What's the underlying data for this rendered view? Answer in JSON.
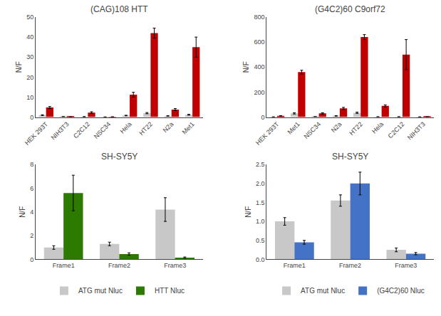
{
  "chart_data": [
    {
      "type": "bar",
      "title": "(CAG)108 HTT",
      "categories": [
        "HEK 293T",
        "NIH3T3",
        "C2C12",
        "NSC34",
        "Hela",
        "HT22",
        "N2a",
        "Met1"
      ],
      "series": [
        {
          "color": "#c8c8c8",
          "values": [
            1.0,
            0.3,
            0.2,
            0.1,
            0.8,
            2.0,
            0.6,
            1.2
          ],
          "errors": [
            0.2,
            0.05,
            0.1,
            0.05,
            0.15,
            0.3,
            0.1,
            0.2
          ]
        },
        {
          "color": "#c00000",
          "values": [
            4.8,
            0.3,
            2.3,
            0.15,
            11.2,
            42.0,
            3.8,
            35.0
          ],
          "errors": [
            0.5,
            0.1,
            0.4,
            0.05,
            1.2,
            2.5,
            0.5,
            5.0
          ]
        }
      ],
      "ylim": [
        0,
        50
      ],
      "yticks": [
        0,
        10,
        20,
        30,
        40,
        50
      ],
      "ylabel": "N/F",
      "grid": false
    },
    {
      "type": "bar",
      "title": "(G4C2)60 C9orf72",
      "categories": [
        "HEK 293T",
        "Met1",
        "NSC34",
        "N2a",
        "HT22",
        "Hela",
        "C2C12",
        "NIH3T3"
      ],
      "series": [
        {
          "color": "#c8c8c8",
          "values": [
            2.0,
            30.0,
            5.0,
            10.0,
            35.0,
            3.0,
            3.0,
            2.0
          ],
          "errors": [
            0.5,
            5.0,
            1.0,
            2.0,
            5.0,
            0.5,
            0.5,
            0.3
          ]
        },
        {
          "color": "#c00000",
          "values": [
            10.0,
            360.0,
            30.0,
            70.0,
            640.0,
            90.0,
            500.0,
            5.0
          ],
          "errors": [
            2.0,
            15.0,
            5.0,
            8.0,
            20.0,
            8.0,
            120.0,
            1.0
          ]
        }
      ],
      "ylim": [
        0,
        800
      ],
      "yticks": [
        0,
        200,
        400,
        600,
        800
      ],
      "ylabel": "N/F",
      "grid": false
    },
    {
      "type": "bar",
      "title": "SH-SY5Y",
      "categories": [
        "Frame1",
        "Frame2",
        "Frame3"
      ],
      "series": [
        {
          "name": "ATG mut Nluc",
          "color": "#c8c8c8",
          "values": [
            1.0,
            1.3,
            4.2
          ],
          "errors": [
            0.15,
            0.15,
            1.0
          ]
        },
        {
          "name": "HTT Nluc",
          "color": "#2d7a00",
          "values": [
            5.6,
            0.45,
            0.15
          ],
          "errors": [
            1.5,
            0.1,
            0.05
          ]
        }
      ],
      "ylim": [
        0,
        8
      ],
      "yticks": [
        0,
        2,
        4,
        6,
        8
      ],
      "ylabel": "N/F",
      "grid": false,
      "legend": "bottom"
    },
    {
      "type": "bar",
      "title": "SH-SY5Y",
      "categories": [
        "Frame1",
        "Frame2",
        "Frame3"
      ],
      "series": [
        {
          "name": "ATG mut Nluc",
          "color": "#c8c8c8",
          "values": [
            1.0,
            1.55,
            0.25
          ],
          "errors": [
            0.1,
            0.15,
            0.05
          ]
        },
        {
          "name": "(G4C2)60 Nluc",
          "color": "#4472c4",
          "values": [
            0.45,
            2.0,
            0.15
          ],
          "errors": [
            0.05,
            0.3,
            0.03
          ]
        }
      ],
      "ylim": [
        0,
        2.5
      ],
      "yticks": [
        {
          "value": 0,
          "label": "0.0"
        },
        0.5,
        {
          "value": 1,
          "label": "1.0"
        },
        1.5,
        {
          "value": 2,
          "label": "2.0"
        },
        2.5
      ],
      "ylabel": "N/F",
      "grid": false,
      "legend": "bottom"
    }
  ]
}
